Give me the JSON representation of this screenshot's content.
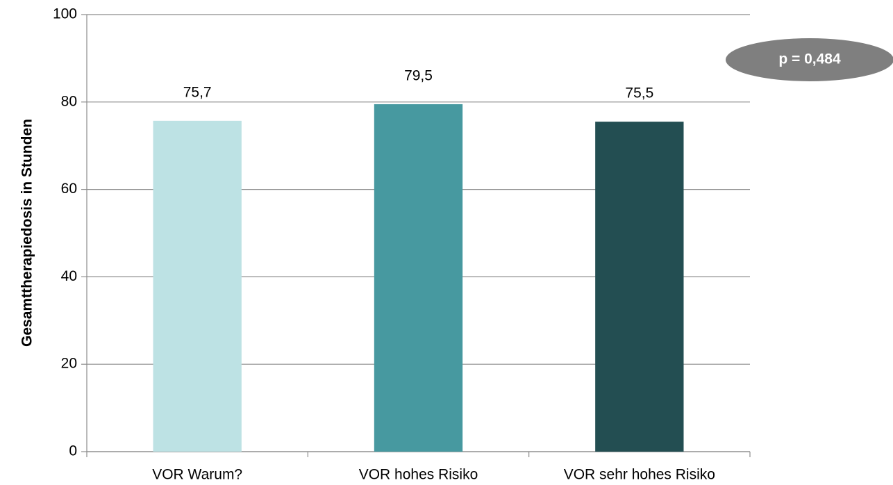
{
  "chart_data": {
    "type": "bar",
    "y_label": "Gesamttherapiedosis in Stunden",
    "categories": [
      "VOR Warum?",
      "VOR hohes Risiko",
      "VOR sehr hohes Risiko"
    ],
    "values": [
      75.7,
      79.5,
      75.5
    ],
    "value_labels": [
      "75,7",
      "79,5",
      "75,5"
    ],
    "colors": [
      "#bde2e4",
      "#4799a0",
      "#234e52"
    ],
    "ylim": [
      0,
      100
    ],
    "yticks": [
      0,
      20,
      40,
      60,
      80,
      100
    ],
    "grid": true,
    "annotation": "p = 0,484"
  }
}
